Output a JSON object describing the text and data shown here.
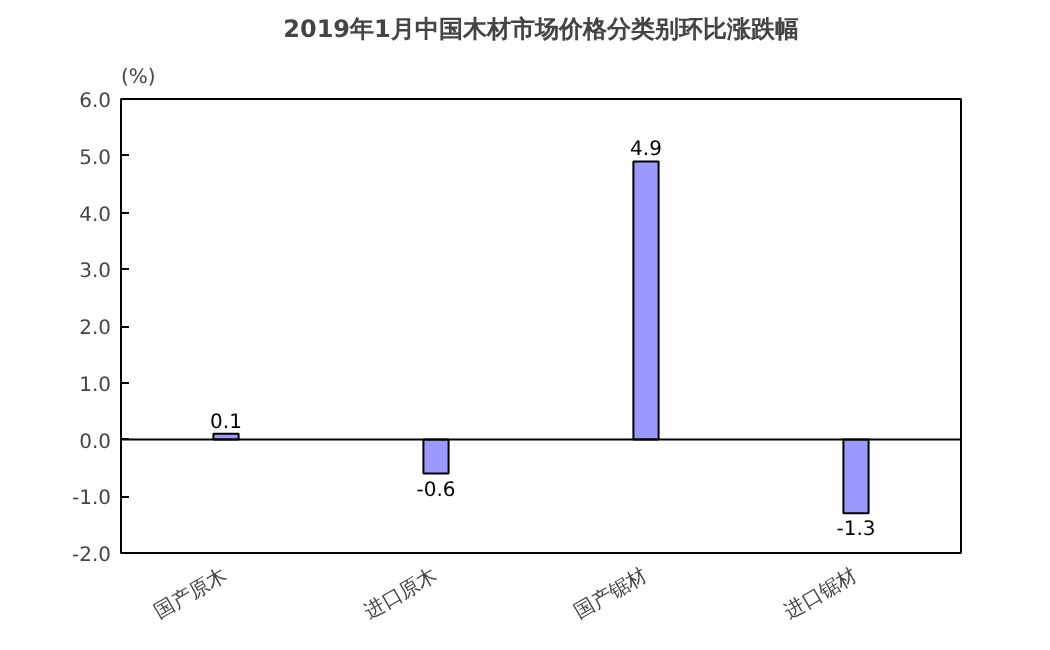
{
  "chart_data": {
    "type": "bar",
    "title": "2019年1月中国木材市场价格分类别环比涨跌幅",
    "ylabel": "(%)",
    "categories": [
      "国产原木",
      "进口原木",
      "国产锯材",
      "进口锯材"
    ],
    "values": [
      0.1,
      -0.6,
      4.9,
      -1.3
    ],
    "color": "#9999ff",
    "ylim": [
      -2,
      6
    ],
    "yticks": [
      {
        "value": -2,
        "label": "-2.0"
      },
      {
        "value": -1,
        "label": "-1.0"
      },
      {
        "value": 0,
        "label": "0.0"
      },
      {
        "value": 1,
        "label": "1.0"
      },
      {
        "value": 2,
        "label": "2.0"
      },
      {
        "value": 3,
        "label": "3.0"
      },
      {
        "value": 4,
        "label": "4.0"
      },
      {
        "value": 5,
        "label": "5.0"
      },
      {
        "value": 6,
        "label": "6.0"
      }
    ],
    "data_labels": true
  }
}
